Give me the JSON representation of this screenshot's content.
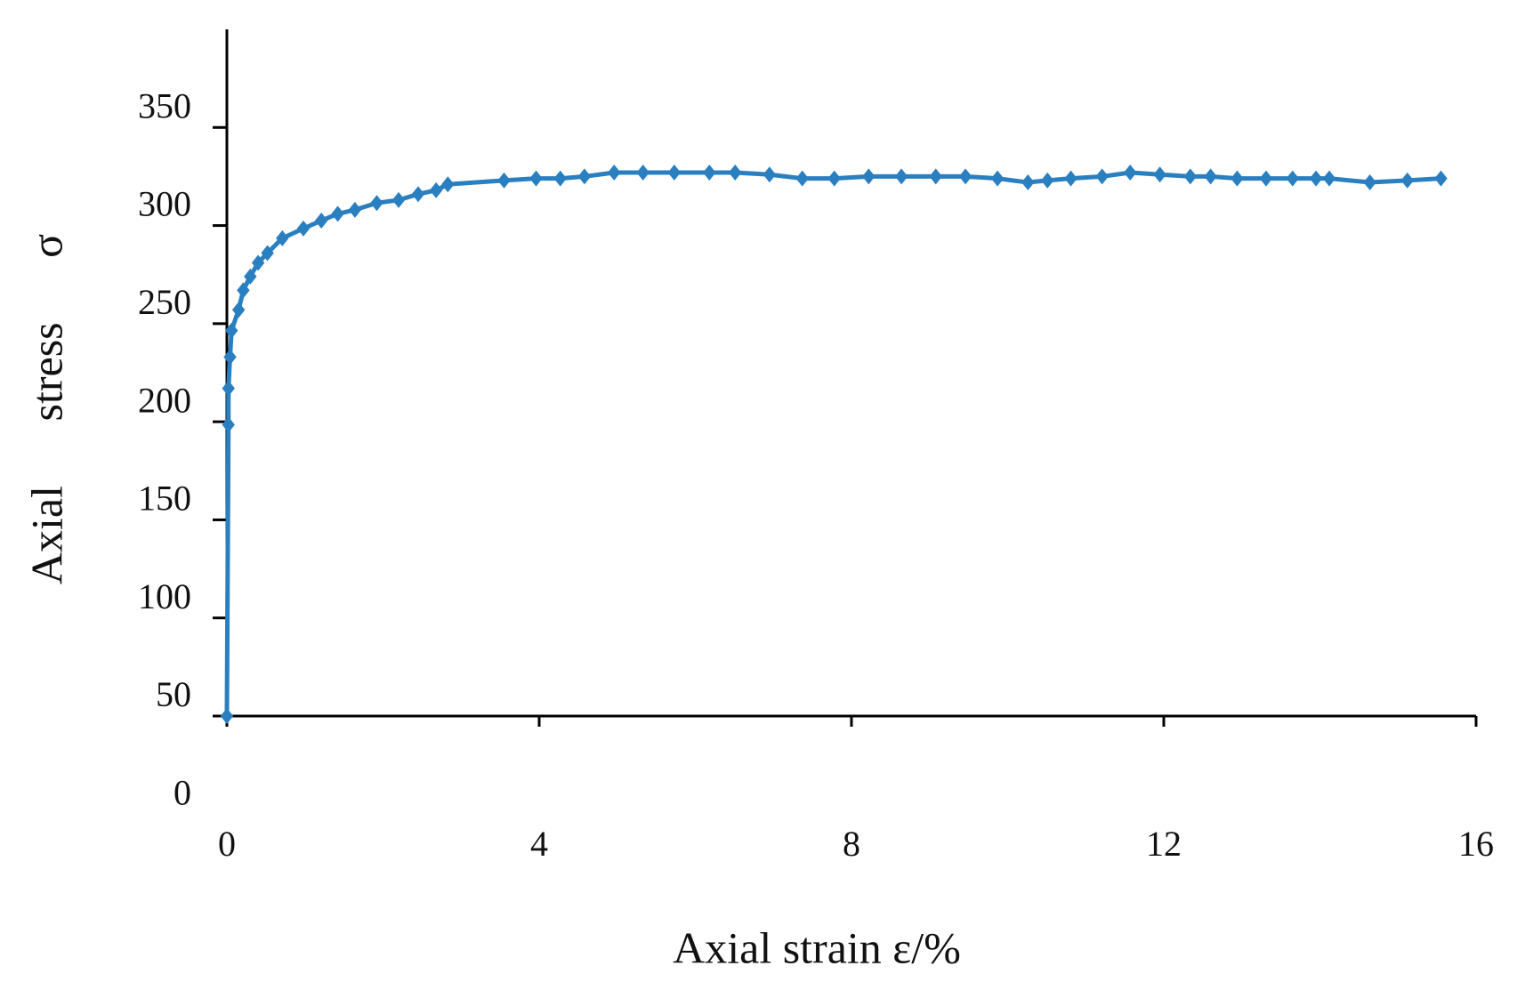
{
  "chart_data": {
    "type": "line",
    "x_label": "Axial strain ε/%",
    "y_label": "Axial stress σ",
    "xlim": [
      0,
      16
    ],
    "xticks": [
      0,
      4,
      8,
      12,
      16
    ],
    "ylim": [
      50,
      400
    ],
    "yticks": [
      0,
      50,
      100,
      150,
      200,
      250,
      300,
      350
    ],
    "grid": false,
    "series": [
      {
        "color": "#2a7fc0",
        "marker": "diamond",
        "x": [
          0,
          0.02,
          0.02,
          0.04,
          0.06,
          0.15,
          0.21,
          0.3,
          0.4,
          0.52,
          0.71,
          0.98,
          1.21,
          1.42,
          1.64,
          1.92,
          2.2,
          2.45,
          2.68,
          2.83,
          3.55,
          3.96,
          4.27,
          4.58,
          4.96,
          5.33,
          5.73,
          6.18,
          6.51,
          6.95,
          7.37,
          7.78,
          8.22,
          8.64,
          9.08,
          9.46,
          9.87,
          10.26,
          10.51,
          10.81,
          11.21,
          11.57,
          11.95,
          12.34,
          12.6,
          12.94,
          13.31,
          13.65,
          13.95,
          14.12,
          14.64,
          15.12,
          15.55
        ],
        "values": [
          50,
          198.5,
          217,
          233,
          246.5,
          257,
          267,
          274,
          281,
          286,
          293.5,
          298.5,
          302.5,
          306,
          308,
          311.5,
          313,
          316,
          318,
          321,
          323,
          324,
          324,
          325,
          327,
          327,
          327,
          327,
          327,
          326,
          324,
          324,
          325,
          325,
          325,
          325,
          324,
          322,
          323,
          324,
          325,
          327,
          326,
          325,
          325,
          324,
          324,
          324,
          324,
          324,
          322,
          323,
          324
        ]
      }
    ]
  }
}
